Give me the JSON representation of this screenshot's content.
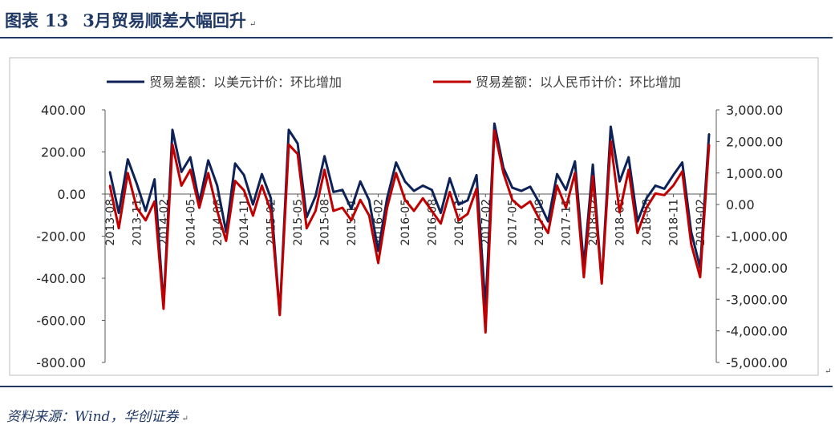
{
  "figure": {
    "title_label": "图表",
    "title_number": "13",
    "title_text": "3月贸易顺差大幅回升",
    "source": "资料来源：Wind，华创证券",
    "paragraph_mark": "↵"
  },
  "chart_data": {
    "type": "line",
    "legend": [
      "贸易差额：以美元计价：环比增加",
      "贸易差额：以人民币计价：环比增加"
    ],
    "legend_position": "top",
    "grid": false,
    "colors": {
      "usd": "#0d2257",
      "rmb": "#c00000"
    },
    "x_tick_labels": [
      "2013-08",
      "2013-11",
      "2014-02",
      "2014-05",
      "2014-08",
      "2014-11",
      "2015-02",
      "2015-05",
      "2015-08",
      "2015-11",
      "2016-02",
      "2016-05",
      "2016-08",
      "2016-11",
      "2017-02",
      "2017-05",
      "2017-08",
      "2017-11",
      "2018-02",
      "2018-05",
      "2018-08",
      "2018-11",
      "2019-02"
    ],
    "y_left": {
      "min": -800,
      "max": 400,
      "ticks": [
        "400.00",
        "200.00",
        "0.00",
        "-200.00",
        "-400.00",
        "-600.00",
        "-800.00"
      ]
    },
    "y_right": {
      "min": -5000,
      "max": 3000,
      "ticks": [
        "3,000.00",
        "2,000.00",
        "1,000.00",
        "0.00",
        "-1,000.00",
        "-2,000.00",
        "-3,000.00",
        "-4,000.00",
        "-5,000.00"
      ]
    },
    "x_start": "2013-08",
    "series": [
      {
        "name": "贸易差额：以美元计价：环比增加",
        "axis": "left",
        "values": [
          105,
          -90,
          165,
          50,
          -80,
          70,
          -530,
          305,
          105,
          175,
          -40,
          160,
          40,
          -180,
          145,
          90,
          -50,
          95,
          -20,
          -570,
          305,
          240,
          -110,
          -10,
          180,
          10,
          20,
          -70,
          60,
          -30,
          -270,
          -20,
          150,
          60,
          15,
          40,
          20,
          -90,
          75,
          -50,
          -30,
          90,
          -540,
          335,
          125,
          30,
          15,
          35,
          -40,
          -130,
          95,
          20,
          155,
          -340,
          140,
          -420,
          320,
          60,
          175,
          -130,
          -20,
          40,
          25,
          90,
          150,
          -180,
          -350,
          285
        ]
      },
      {
        "name": "贸易差额：以人民币计价：环比增加",
        "axis": "right",
        "values": [
          600,
          -750,
          1000,
          -100,
          -500,
          100,
          -3300,
          1900,
          600,
          1100,
          -100,
          1000,
          -200,
          -1150,
          750,
          450,
          -350,
          600,
          -200,
          -3500,
          1900,
          1600,
          -750,
          -200,
          1100,
          -200,
          -100,
          -500,
          150,
          -350,
          -1850,
          -100,
          1000,
          150,
          -200,
          200,
          -200,
          -600,
          400,
          -500,
          -300,
          500,
          -4050,
          2350,
          1000,
          150,
          -100,
          100,
          -450,
          -900,
          600,
          -100,
          1000,
          -2300,
          900,
          -2500,
          2000,
          -250,
          1100,
          -900,
          -100,
          350,
          300,
          600,
          1050,
          -1250,
          -2300,
          1900
        ]
      }
    ]
  }
}
